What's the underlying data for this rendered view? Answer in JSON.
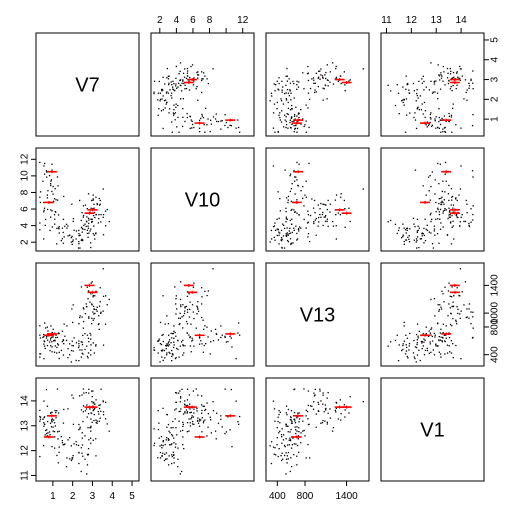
{
  "chart_data": {
    "type": "scatter",
    "variables": [
      "V7",
      "V10",
      "V13",
      "V1"
    ],
    "axes": {
      "V7": {
        "range": [
          0.3,
          5.2
        ],
        "ticks": [
          1,
          2,
          3,
          4,
          5
        ],
        "tick_labels": [
          "1",
          "2",
          "3",
          "4",
          "5"
        ]
      },
      "V10": {
        "range": [
          1.3,
          13.0
        ],
        "ticks": [
          2,
          4,
          6,
          8,
          10,
          12
        ],
        "top_labels": [
          "2",
          "4",
          "6",
          "8",
          "",
          "12"
        ],
        "left_labels": [
          "2",
          "4",
          "6",
          "8",
          "10",
          "12"
        ]
      },
      "V13": {
        "range": [
          280,
          1680
        ],
        "ticks": [
          400,
          800,
          1400
        ],
        "tick_labels": [
          "400",
          "800",
          "1400"
        ],
        "right_labels": [
          "400",
          "800",
          "1000",
          "1400"
        ],
        "right_ticks": [
          400,
          800,
          1000,
          1400
        ]
      },
      "V1": {
        "range": [
          10.9,
          14.8
        ],
        "ticks": [
          11,
          12,
          13,
          14
        ],
        "tick_labels": [
          "11",
          "12",
          "13",
          "14"
        ]
      }
    },
    "centers": [
      {
        "V7": 2.85,
        "V10": 5.5,
        "V13": 1400,
        "V1": 13.75
      },
      {
        "V7": 0.95,
        "V10": 10.5,
        "V13": 700,
        "V1": 13.4
      },
      {
        "V7": 3.0,
        "V10": 5.9,
        "V13": 1300,
        "V1": 13.75
      },
      {
        "V7": 0.8,
        "V10": 6.8,
        "V13": 680,
        "V1": 12.55
      }
    ],
    "point_count": 178,
    "grid": false,
    "point_color": "#000000",
    "center_color": "#ff0000"
  }
}
